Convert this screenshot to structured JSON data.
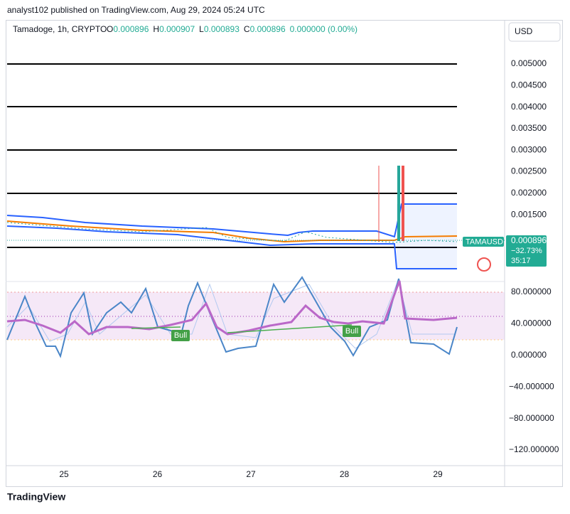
{
  "header": {
    "publisher": "analyst102 published on TradingView.com, Aug 29, 2024 05:24 UTC"
  },
  "legend": {
    "symbol": "Tamadoge, 1h, CRYPTO",
    "open_label": "O",
    "open": "0.000896",
    "high_label": "H",
    "high": "0.000907",
    "low_label": "L",
    "low": "0.000893",
    "close_label": "C",
    "close": "0.000896",
    "change": "0.000000 (0.00%)"
  },
  "currency_button": "USD",
  "price_axis": [
    "0.005000",
    "0.004500",
    "0.004000",
    "0.003500",
    "0.003000",
    "0.002500",
    "0.002000",
    "0.001500"
  ],
  "symbol_tag": "TAMAUSD",
  "price_tag": {
    "price": "0.000896",
    "change": "−32.73%",
    "countdown": "35:17"
  },
  "oscillator_axis": [
    "80.000000",
    "40.000000",
    "0.000000",
    "−40.000000",
    "−80.000000",
    "−120.000000"
  ],
  "time_axis": [
    "25",
    "26",
    "27",
    "28",
    "29"
  ],
  "signals": [
    "Bull",
    "Bull"
  ],
  "footer": {
    "brand": "TradingView"
  }
}
